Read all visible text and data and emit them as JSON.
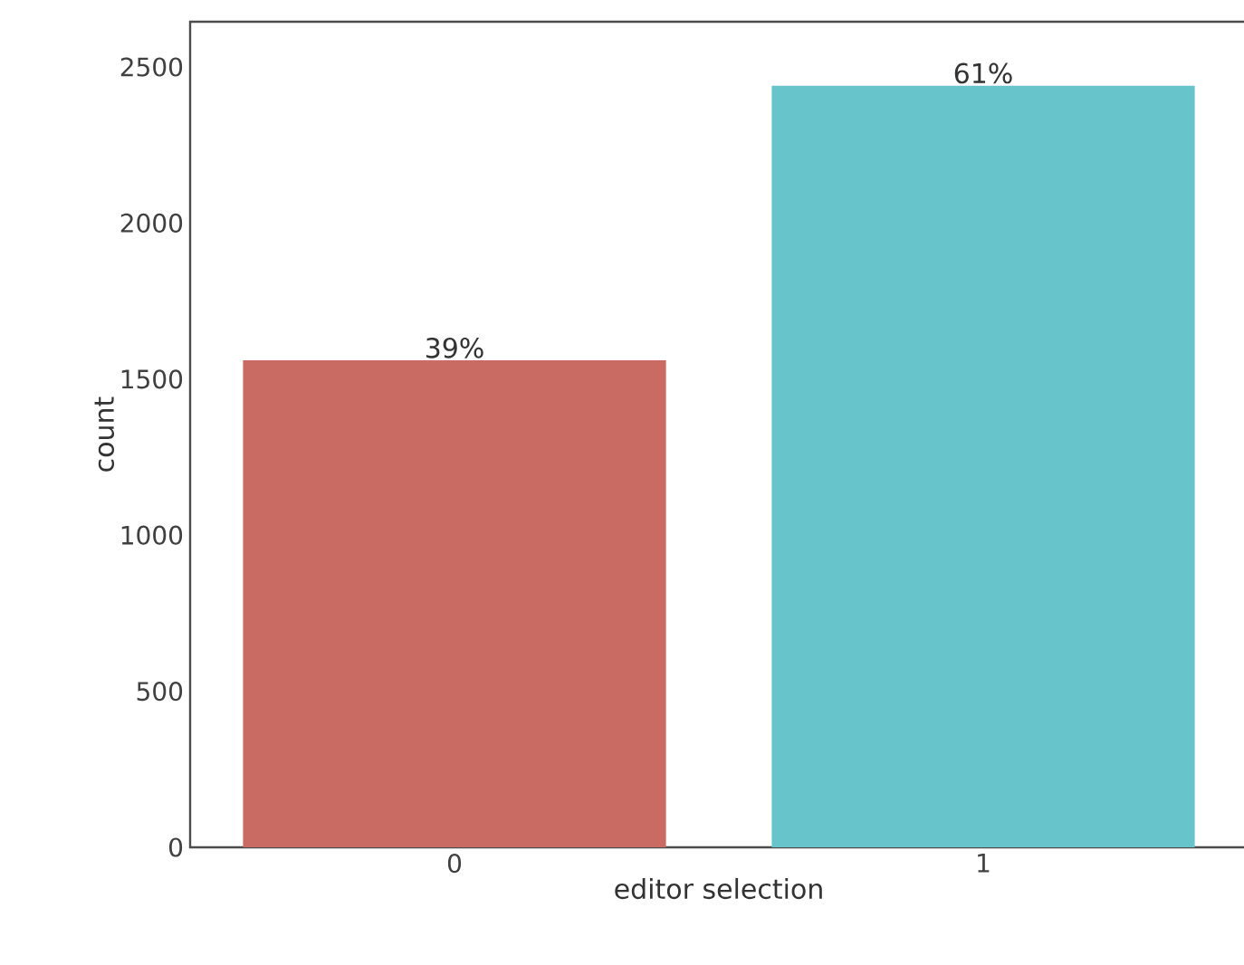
{
  "chart_data": {
    "type": "bar",
    "xlabel": "editor selection",
    "ylabel": "count",
    "categories": [
      "0",
      "1"
    ],
    "values": [
      1560,
      2440
    ],
    "colors": [
      "#c96b63",
      "#67c4ca"
    ],
    "annotations": [
      {
        "text": "39%",
        "x": "0",
        "y": 1560
      },
      {
        "text": "61%",
        "x": "1",
        "y": 2440
      }
    ],
    "ylim": [
      0,
      2645
    ],
    "yticks": [
      0,
      500,
      1000,
      1500,
      2000,
      2500
    ],
    "grid": false
  }
}
